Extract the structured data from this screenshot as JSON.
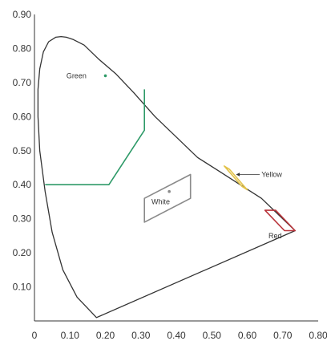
{
  "chart_data": {
    "type": "line",
    "title": "",
    "xlabel": "",
    "ylabel": "",
    "xlim": [
      0,
      0.8
    ],
    "ylim": [
      0,
      0.9
    ],
    "x_ticks": [
      0,
      0.1,
      0.2,
      0.3,
      0.4,
      0.5,
      0.6,
      0.7,
      0.8
    ],
    "x_tick_labels": [
      "0",
      "0.10",
      "0.20",
      "0.30",
      "0.40",
      "0.50",
      "0.60",
      "0.70",
      "0.80"
    ],
    "y_ticks": [
      0.1,
      0.2,
      0.3,
      0.4,
      0.5,
      0.6,
      0.7,
      0.8,
      0.9
    ],
    "y_tick_labels": [
      "0.10",
      "0.20",
      "0.30",
      "0.40",
      "0.50",
      "0.60",
      "0.70",
      "0.80",
      "0.90"
    ],
    "grid": false,
    "colors": {
      "locus": "#333333",
      "green": "#2e9a68",
      "yellow": "#e2c24a",
      "red": "#b8333a",
      "white": "#8a8a8a",
      "axis": "#333333"
    },
    "series": [
      {
        "key": "locus",
        "closed": true,
        "x": [
          0.175,
          0.12,
          0.08,
          0.05,
          0.03,
          0.015,
          0.01,
          0.01,
          0.015,
          0.025,
          0.04,
          0.06,
          0.075,
          0.09,
          0.11,
          0.14,
          0.18,
          0.23,
          0.28,
          0.34,
          0.4,
          0.46,
          0.52,
          0.58,
          0.64,
          0.69,
          0.735
        ],
        "y": [
          0.01,
          0.07,
          0.15,
          0.26,
          0.38,
          0.5,
          0.6,
          0.68,
          0.74,
          0.79,
          0.82,
          0.833,
          0.835,
          0.833,
          0.826,
          0.81,
          0.77,
          0.725,
          0.67,
          0.6,
          0.54,
          0.48,
          0.44,
          0.4,
          0.36,
          0.31,
          0.265
        ]
      },
      {
        "key": "green",
        "closed": false,
        "x": [
          0.03,
          0.21,
          0.31,
          0.31,
          0.31
        ],
        "y": [
          0.4,
          0.4,
          0.56,
          0.6,
          0.68
        ]
      },
      {
        "key": "yellow",
        "closed": true,
        "x": [
          0.535,
          0.55,
          0.6,
          0.585
        ],
        "y": [
          0.455,
          0.445,
          0.385,
          0.395
        ]
      },
      {
        "key": "red",
        "closed": true,
        "x": [
          0.65,
          0.68,
          0.735,
          0.705
        ],
        "y": [
          0.325,
          0.325,
          0.265,
          0.265
        ]
      },
      {
        "key": "white",
        "closed": true,
        "x": [
          0.31,
          0.31,
          0.44,
          0.44
        ],
        "y": [
          0.29,
          0.36,
          0.43,
          0.36
        ]
      }
    ],
    "points": [
      {
        "key": "green",
        "x": 0.2,
        "y": 0.72
      },
      {
        "key": "white",
        "x": 0.38,
        "y": 0.38
      }
    ],
    "annotations": [
      {
        "key": "green",
        "text": "Green",
        "x": 0.09,
        "y": 0.72,
        "anchor": "start"
      },
      {
        "key": "white",
        "text": "White",
        "x": 0.33,
        "y": 0.35,
        "anchor": "start"
      },
      {
        "key": "yellow",
        "text": "Yellow",
        "x": 0.64,
        "y": 0.43,
        "anchor": "start",
        "arrow_from_x": 0.635,
        "arrow_to_x": 0.57
      },
      {
        "key": "red",
        "text": "Red",
        "x": 0.66,
        "y": 0.25,
        "anchor": "start"
      }
    ]
  }
}
